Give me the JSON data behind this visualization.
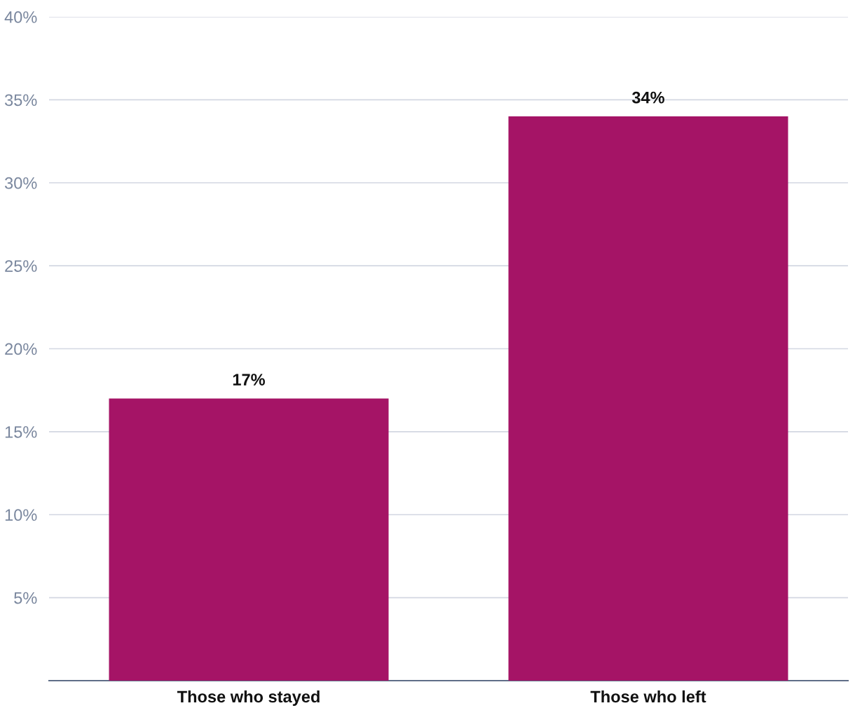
{
  "chart_data": {
    "type": "bar",
    "categories": [
      "Those who stayed",
      "Those who left"
    ],
    "values": [
      17,
      34
    ],
    "color": "#a51466",
    "value_labels": [
      "17%",
      "34%"
    ],
    "ylim": [
      0,
      40
    ],
    "yticks": [
      {
        "value": 5,
        "label": "5%"
      },
      {
        "value": 10,
        "label": "10%"
      },
      {
        "value": 15,
        "label": "15%"
      },
      {
        "value": 20,
        "label": "20%"
      },
      {
        "value": 25,
        "label": "25%"
      },
      {
        "value": 30,
        "label": "30%"
      },
      {
        "value": 35,
        "label": "35%"
      },
      {
        "value": 40,
        "label": "40%"
      }
    ],
    "grid": "y",
    "legend": false
  }
}
